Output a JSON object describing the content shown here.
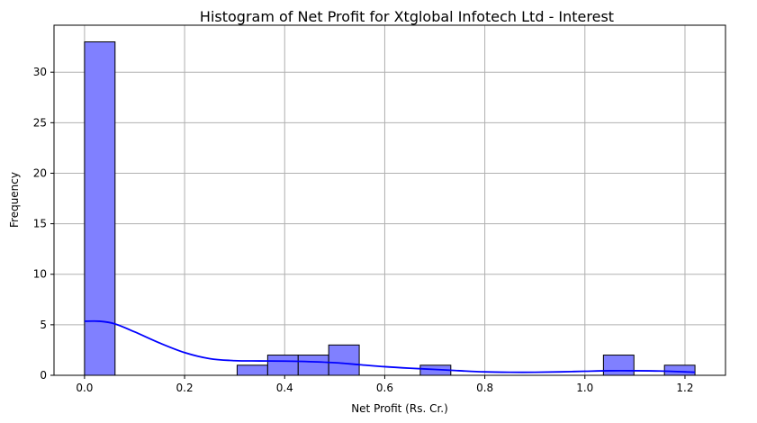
{
  "chart_data": {
    "type": "bar",
    "title": "Histogram of Net Profit for Xtglobal Infotech Ltd - Interest",
    "xlabel": "Net Profit (Rs. Cr.)",
    "ylabel": "Frequency",
    "xlim": [
      -0.061,
      1.281
    ],
    "ylim": [
      0,
      34.65
    ],
    "xticks": [
      0.0,
      0.2,
      0.4,
      0.6,
      0.8,
      1.0,
      1.2
    ],
    "xtick_labels": [
      "0.0",
      "0.2",
      "0.4",
      "0.6",
      "0.8",
      "1.0",
      "1.2"
    ],
    "yticks": [
      0,
      5,
      10,
      15,
      20,
      25,
      30
    ],
    "ytick_labels": [
      "0",
      "5",
      "10",
      "15",
      "20",
      "25",
      "30"
    ],
    "grid": true,
    "bin_start": 0.0,
    "bin_width": 0.061,
    "counts": [
      33,
      0,
      0,
      0,
      0,
      1,
      2,
      2,
      3,
      0,
      0,
      1,
      0,
      0,
      0,
      0,
      0,
      2,
      0,
      1
    ],
    "kde": {
      "x": [
        0.0,
        0.03,
        0.06,
        0.1,
        0.15,
        0.2,
        0.25,
        0.3,
        0.35,
        0.4,
        0.45,
        0.5,
        0.55,
        0.6,
        0.65,
        0.7,
        0.75,
        0.8,
        0.85,
        0.9,
        0.95,
        1.0,
        1.05,
        1.1,
        1.15,
        1.2,
        1.22
      ],
      "y": [
        5.35,
        5.35,
        5.1,
        4.3,
        3.2,
        2.25,
        1.65,
        1.45,
        1.42,
        1.4,
        1.35,
        1.25,
        1.05,
        0.85,
        0.7,
        0.58,
        0.45,
        0.34,
        0.3,
        0.3,
        0.34,
        0.4,
        0.45,
        0.45,
        0.42,
        0.34,
        0.3
      ]
    },
    "colors": {
      "bar_fill": "#8080ff",
      "bar_edge": "#000000",
      "kde_line": "#0000ff",
      "grid": "#b0b0b0"
    }
  }
}
